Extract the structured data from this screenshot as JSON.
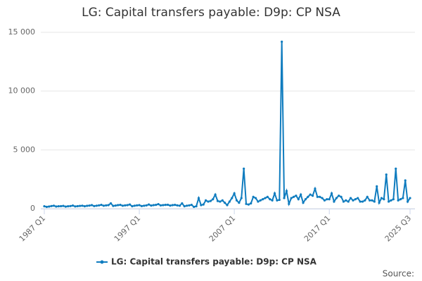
{
  "chart_data": {
    "type": "line",
    "title": "LG: Capital transfers payable: D9p: CP NSA",
    "categories": [
      "1987 Q1",
      null,
      null,
      null,
      null,
      null,
      null,
      null,
      null,
      null,
      null,
      null,
      null,
      null,
      null,
      null,
      null,
      null,
      null,
      null,
      null,
      null,
      null,
      null,
      null,
      null,
      null,
      null,
      null,
      null,
      null,
      null,
      null,
      null,
      null,
      null,
      null,
      null,
      null,
      null,
      "1997 Q1",
      null,
      null,
      null,
      null,
      null,
      null,
      null,
      null,
      null,
      null,
      null,
      null,
      null,
      null,
      null,
      null,
      null,
      null,
      null,
      null,
      null,
      null,
      null,
      null,
      null,
      null,
      null,
      null,
      null,
      null,
      null,
      null,
      null,
      null,
      null,
      null,
      null,
      null,
      null,
      "2007 Q1",
      null,
      null,
      null,
      null,
      null,
      null,
      null,
      null,
      null,
      null,
      null,
      null,
      null,
      null,
      null,
      null,
      null,
      null,
      null,
      null,
      null,
      null,
      null,
      null,
      null,
      null,
      null,
      null,
      null,
      null,
      null,
      null,
      null,
      null,
      null,
      null,
      null,
      null,
      null,
      "2017 Q1",
      null,
      null,
      null,
      null,
      null,
      null,
      null,
      null,
      null,
      null,
      null,
      null,
      null,
      null,
      null,
      null,
      null,
      null,
      null,
      null,
      null,
      null,
      null,
      null,
      null,
      null,
      null,
      null,
      null,
      null,
      null,
      null,
      null,
      "2025 Q3"
    ],
    "series": [
      {
        "name": "LG: Capital transfers payable: D9p: CP NSA",
        "color": "#0f7cbf",
        "values": [
          200,
          150,
          180,
          220,
          250,
          180,
          200,
          210,
          230,
          170,
          200,
          220,
          260,
          190,
          210,
          230,
          250,
          200,
          240,
          260,
          300,
          220,
          250,
          280,
          320,
          250,
          280,
          300,
          450,
          230,
          260,
          300,
          320,
          250,
          280,
          300,
          350,
          200,
          250,
          280,
          300,
          220,
          250,
          280,
          350,
          260,
          300,
          320,
          380,
          280,
          300,
          320,
          330,
          260,
          300,
          320,
          280,
          250,
          450,
          200,
          250,
          280,
          320,
          150,
          200,
          900,
          300,
          350,
          700,
          600,
          650,
          800,
          1200,
          650,
          600,
          700,
          500,
          300,
          600,
          900,
          1300,
          700,
          500,
          900,
          3400,
          400,
          350,
          450,
          1000,
          900,
          600,
          700,
          800,
          900,
          1000,
          800,
          700,
          1300,
          700,
          750,
          14200,
          900,
          1500,
          400,
          900,
          1000,
          1100,
          800,
          1200,
          500,
          800,
          1000,
          1200,
          1100,
          1700,
          1000,
          1000,
          900,
          700,
          800,
          800,
          1300,
          600,
          900,
          1100,
          1000,
          600,
          700,
          600,
          900,
          700,
          800,
          900,
          600,
          600,
          700,
          1000,
          700,
          700,
          600,
          1900,
          500,
          900,
          800,
          2900,
          600,
          700,
          800,
          3400,
          700,
          800,
          900,
          2400,
          600,
          900
        ]
      }
    ],
    "ylim": [
      0,
      15000
    ],
    "yticks": [
      0,
      {
        "value": 5000,
        "label": "5 000"
      },
      {
        "value": 10000,
        "label": "10 000"
      },
      {
        "value": 15000,
        "label": "15 000"
      }
    ],
    "grid": true,
    "legend": "bottom",
    "source": "Source:"
  }
}
